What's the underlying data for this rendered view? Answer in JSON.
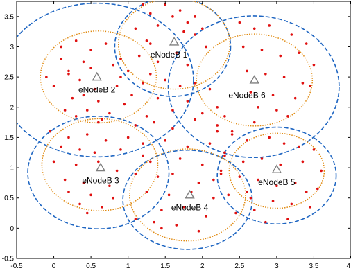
{
  "chart_data": {
    "type": "scatter",
    "title": "",
    "xlabel": "",
    "ylabel": "",
    "xlim": [
      -0.5,
      4
    ],
    "ylim": [
      -0.5,
      3.75
    ],
    "x_ticks": [
      -0.5,
      0,
      0.5,
      1,
      1.5,
      2,
      2.5,
      3,
      3.5,
      4
    ],
    "x_tick_labels": [
      "-0.5",
      "0",
      "0.5",
      "1",
      "1.5",
      "2",
      "2.5",
      "3",
      "3.5",
      "4"
    ],
    "y_ticks": [
      -0.5,
      0,
      0.5,
      1,
      1.5,
      2,
      2.5,
      3,
      3.5
    ],
    "y_tick_labels": [
      "-0.5",
      "0",
      "0.5",
      "1",
      "1.5",
      "2",
      "2.5",
      "3",
      "3.5"
    ],
    "grid": false,
    "legend": "none",
    "colors": {
      "user": "#e01010",
      "inner_circle": "#e08a10",
      "outer_circle": "#1f66c2",
      "base_station": "#7f7f7f"
    },
    "base_stations": [
      {
        "name": "eNodeB 1",
        "x": 1.62,
        "y": 3.08,
        "label_x": 1.55,
        "label_y": 2.87
      },
      {
        "name": "eNodeB 2",
        "x": 0.58,
        "y": 2.5,
        "label_x": 0.58,
        "label_y": 2.29
      },
      {
        "name": "eNodeB 3",
        "x": 0.63,
        "y": 1.0,
        "label_x": 0.63,
        "label_y": 0.79
      },
      {
        "name": "eNodeB 4",
        "x": 1.83,
        "y": 0.55,
        "label_x": 1.83,
        "label_y": 0.34
      },
      {
        "name": "eNodeB 5",
        "x": 3.0,
        "y": 0.97,
        "label_x": 3.0,
        "label_y": 0.76
      },
      {
        "name": "eNodeB 6",
        "x": 2.7,
        "y": 2.45,
        "label_x": 2.6,
        "label_y": 2.2
      }
    ],
    "inner_circles": [
      {
        "cx": 1.62,
        "cy": 3.05,
        "rx": 0.75,
        "ry": 0.75
      },
      {
        "cx": 0.6,
        "cy": 2.5,
        "rx": 0.78,
        "ry": 0.76
      },
      {
        "cx": 0.62,
        "cy": 1.05,
        "rx": 0.78,
        "ry": 0.76
      },
      {
        "cx": 1.8,
        "cy": 0.55,
        "rx": 0.78,
        "ry": 0.76
      },
      {
        "cx": 3.0,
        "cy": 0.95,
        "rx": 0.64,
        "ry": 0.62
      },
      {
        "cx": 2.7,
        "cy": 2.45,
        "rx": 0.78,
        "ry": 0.76
      }
    ],
    "outer_circles": [
      {
        "cx": 1.6,
        "cy": 3.0,
        "rx": 0.78,
        "ry": 0.82
      },
      {
        "cx": 0.58,
        "cy": 2.45,
        "rx": 1.3,
        "ry": 1.27
      },
      {
        "cx": 0.6,
        "cy": 0.92,
        "rx": 0.95,
        "ry": 0.93
      },
      {
        "cx": 1.8,
        "cy": 0.47,
        "rx": 0.87,
        "ry": 0.82
      },
      {
        "cx": 3.0,
        "cy": 0.87,
        "rx": 0.8,
        "ry": 0.8
      },
      {
        "cx": 2.69,
        "cy": 2.34,
        "rx": 1.15,
        "ry": 1.17
      }
    ],
    "users": {
      "x": [
        1.2,
        1.3,
        1.5,
        1.7,
        1.9,
        1.1,
        1.4,
        1.8,
        1.9,
        1.65,
        1.25,
        1.4,
        1.8,
        2.05,
        1.15,
        1.6,
        1.75,
        2.0,
        1.3,
        0.1,
        0.3,
        0.5,
        0.7,
        0.9,
        1.0,
        -0.1,
        0.2,
        0.4,
        0.8,
        1.2,
        0.0,
        0.35,
        0.55,
        0.85,
        1.05,
        0.25,
        0.6,
        0.95,
        0.15,
        0.45,
        0.75,
        0.3,
        0.65,
        0.2,
        0.5,
        0.9,
        0.1,
        0.4,
        0.6,
        -0.05,
        0.2,
        0.45,
        0.7,
        1.0,
        0.1,
        0.35,
        0.55,
        0.9,
        1.2,
        0.0,
        0.3,
        0.6,
        0.85,
        1.1,
        0.15,
        0.4,
        0.75,
        0.2,
        0.5,
        0.8,
        0.35,
        0.65,
        0.45,
        1.1,
        1.35,
        1.6,
        1.9,
        2.2,
        2.4,
        1.2,
        1.5,
        1.8,
        2.1,
        2.3,
        1.3,
        1.7,
        2.0,
        2.25,
        1.4,
        1.6,
        1.95,
        1.25,
        1.55,
        1.85,
        2.15,
        1.45,
        1.75,
        2.05,
        1.35,
        1.65,
        2.5,
        2.7,
        2.9,
        3.2,
        3.4,
        2.55,
        2.8,
        3.05,
        3.3,
        3.5,
        2.6,
        2.85,
        3.1,
        3.35,
        2.65,
        2.95,
        3.25,
        2.75,
        3.0,
        3.15,
        2.7,
        3.45,
        2.2,
        2.4,
        2.6,
        2.9,
        3.1,
        3.3,
        3.5,
        2.3,
        2.55,
        2.8,
        3.05,
        3.35,
        3.6,
        2.25,
        2.5,
        2.75,
        3.0,
        3.25,
        3.55,
        2.35,
        2.65,
        2.95,
        3.2,
        3.45,
        2.45,
        2.7,
        3.15,
        2.85,
        2.6,
        3.4,
        1.3,
        1.5,
        1.7,
        1.9,
        2.1,
        2.2,
        1.4,
        1.8,
        2.0,
        1.6,
        1.25,
        2.3,
        1.45,
        1.95,
        1.1,
        2.15
      ],
      "y": [
        3.7,
        3.55,
        3.7,
        3.6,
        3.5,
        3.3,
        3.35,
        3.4,
        3.2,
        2.9,
        3.1,
        2.75,
        2.7,
        3.0,
        2.85,
        3.5,
        3.25,
        3.3,
        3.05,
        3.0,
        3.1,
        2.95,
        3.05,
        2.8,
        2.6,
        2.5,
        2.6,
        2.75,
        2.7,
        2.4,
        2.35,
        2.45,
        2.3,
        2.35,
        2.2,
        2.15,
        2.1,
        2.05,
        1.95,
        1.95,
        1.9,
        1.85,
        1.8,
        2.55,
        2.65,
        2.5,
        2.8,
        2.2,
        1.75,
        1.6,
        1.5,
        1.55,
        1.45,
        1.5,
        1.35,
        1.3,
        1.25,
        1.3,
        1.2,
        1.1,
        1.05,
        1.1,
        0.95,
        0.9,
        0.8,
        0.75,
        0.7,
        0.6,
        0.55,
        0.5,
        0.4,
        0.35,
        0.25,
        1.7,
        1.75,
        1.65,
        1.8,
        1.7,
        1.6,
        1.4,
        1.45,
        1.35,
        1.4,
        1.25,
        1.1,
        1.15,
        1.05,
        0.95,
        0.85,
        0.9,
        0.75,
        0.6,
        0.55,
        0.6,
        0.5,
        0.3,
        0.35,
        0.2,
        0.1,
        0.05,
        3.4,
        3.3,
        3.35,
        3.2,
        3.05,
        3.0,
        2.95,
        2.85,
        2.9,
        2.7,
        2.6,
        2.55,
        2.5,
        2.4,
        2.25,
        2.2,
        2.15,
        2.0,
        1.95,
        1.85,
        1.75,
        2.35,
        1.6,
        1.55,
        1.45,
        1.5,
        1.4,
        1.35,
        1.3,
        1.2,
        1.1,
        1.15,
        1.05,
        1.1,
        0.95,
        0.9,
        0.85,
        0.8,
        0.7,
        0.75,
        0.65,
        0.55,
        0.5,
        0.45,
        0.4,
        0.35,
        0.25,
        0.3,
        0.15,
        0.1,
        0.6,
        0.6,
        2.55,
        2.45,
        2.35,
        2.4,
        2.3,
        2.0,
        2.15,
        2.1,
        1.9,
        1.95,
        1.85,
        1.85,
        0.0,
        -0.05,
        0.15,
        0.8
      ]
    }
  }
}
